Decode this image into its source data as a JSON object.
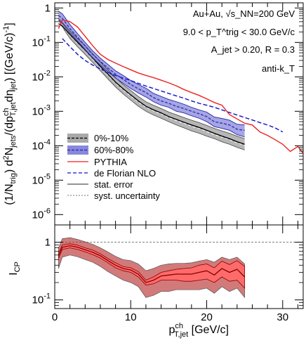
{
  "chart_data": [
    {
      "type": "line",
      "panel": "top",
      "yscale": "log",
      "xlim": [
        0,
        32.7
      ],
      "ylim": [
        5e-07,
        1.5
      ],
      "xticks": [
        "0",
        "10",
        "20",
        "30"
      ],
      "yticks": [
        "10^-6",
        "10^-5",
        "10^-4",
        "10^-3",
        "10^-2",
        "10^-1",
        "1"
      ],
      "ylabel": "(1/N_trig) d²N_jets/(dp^ch_T,jet dη_jet) [(GeV/c)^-1]",
      "annotations": [
        "Au+Au, √s_NN=200 GeV",
        "9.0 < p_T^trig < 30.0 GeV/c",
        "A_jet > 0.20, R = 0.3",
        "anti-k_T"
      ],
      "legend": {
        "position": "lower-left",
        "entries": [
          "0%-10%",
          "60%-80%",
          "PYTHIA",
          "de Florian NLO",
          "stat. error",
          "syst. uncertainty"
        ]
      },
      "series": [
        {
          "name": "0%-10%",
          "color": "#000000",
          "band_color": "#a9a9a9",
          "x": [
            0.5,
            1,
            2,
            3,
            4,
            5,
            6,
            7,
            8,
            9,
            10,
            11,
            12,
            13,
            14,
            15,
            16,
            17,
            18,
            19,
            20,
            21,
            22,
            23,
            24,
            25
          ],
          "y": [
            0.35,
            0.3,
            0.17,
            0.1,
            0.06,
            0.035,
            0.02,
            0.012,
            0.007,
            0.0045,
            0.003,
            0.002,
            0.0014,
            0.0011,
            0.0009,
            0.0007,
            0.00058,
            0.00048,
            0.0004,
            0.00034,
            0.00028,
            0.00023,
            0.00019,
            0.00016,
            0.00013,
            0.00011
          ],
          "band_low": [
            0.45,
            0.28,
            0.13,
            0.075,
            0.045,
            0.026,
            0.015,
            0.0087,
            0.0051,
            0.0032,
            0.0021,
            0.0014,
            0.001,
            0.00078,
            0.00063,
            0.0005,
            0.0004,
            0.00033,
            0.00027,
            0.00023,
            0.00019,
            0.00016,
            0.00013,
            0.00011,
            9e-05,
            7.5e-05
          ],
          "band_high": [
            0.5,
            0.38,
            0.22,
            0.13,
            0.08,
            0.047,
            0.027,
            0.016,
            0.0095,
            0.006,
            0.004,
            0.0027,
            0.0019,
            0.0015,
            0.0012,
            0.00095,
            0.00079,
            0.00066,
            0.00055,
            0.00047,
            0.00039,
            0.00032,
            0.00027,
            0.00023,
            0.00019,
            0.00016
          ],
          "y_dashed": [
            0.35,
            0.29,
            0.16,
            0.095,
            0.057,
            0.033,
            0.019,
            0.0113,
            0.0066,
            0.0042,
            0.0028,
            0.00187,
            0.00131,
            0.00103,
            0.00084,
            0.00066,
            0.00054,
            0.00045,
            0.00037,
            0.00032,
            0.00026,
            0.00021,
            0.000178,
            0.00015,
            0.000122,
            0.000103
          ]
        },
        {
          "name": "60%-80%",
          "color": "#3333aa",
          "band_color": "#8888dd",
          "x": [
            0.5,
            1,
            2,
            3,
            4,
            5,
            6,
            7,
            8,
            9,
            10,
            11,
            12,
            13,
            14,
            15,
            16,
            17,
            18,
            19,
            20,
            21,
            22,
            23,
            24,
            25
          ],
          "y": [
            0.6,
            0.5,
            0.25,
            0.14,
            0.08,
            0.045,
            0.028,
            0.018,
            0.012,
            0.0085,
            0.006,
            0.0045,
            0.0035,
            0.0025,
            0.002,
            0.0017,
            0.0014,
            0.0012,
            0.001,
            0.00085,
            0.0007,
            0.0005,
            0.00045,
            0.0004,
            0.0003,
            0.00028
          ],
          "band_low": [
            0.45,
            0.36,
            0.19,
            0.11,
            0.062,
            0.036,
            0.022,
            0.014,
            0.0093,
            0.0065,
            0.0046,
            0.0034,
            0.0026,
            0.0019,
            0.0015,
            0.0013,
            0.001,
            0.0009,
            0.00074,
            0.00063,
            0.0005,
            0.00036,
            0.00032,
            0.00028,
            0.00021,
            0.00018
          ],
          "band_high": [
            0.8,
            0.68,
            0.33,
            0.18,
            0.1,
            0.057,
            0.035,
            0.023,
            0.015,
            0.011,
            0.0078,
            0.006,
            0.0047,
            0.0033,
            0.0027,
            0.0022,
            0.0019,
            0.0016,
            0.0013,
            0.0011,
            0.00095,
            0.00068,
            0.00062,
            0.00055,
            0.00042,
            0.0004
          ]
        },
        {
          "name": "PYTHIA",
          "color": "#ee2222",
          "x": [
            0.5,
            1,
            2,
            3,
            4,
            5,
            6,
            7,
            8,
            9,
            10,
            11,
            12,
            13,
            14,
            15,
            16,
            17,
            18,
            19,
            20,
            21,
            22,
            23,
            24,
            25,
            26,
            27,
            28,
            29,
            30,
            31,
            32,
            32.7
          ],
          "y": [
            0.25,
            0.45,
            0.4,
            0.28,
            0.15,
            0.08,
            0.045,
            0.032,
            0.025,
            0.02,
            0.016,
            0.013,
            0.011,
            0.0095,
            0.008,
            0.0067,
            0.0055,
            0.0043,
            0.0035,
            0.0029,
            0.0023,
            0.0018,
            0.0015,
            0.0008,
            0.0006,
            0.00045,
            0.0004,
            0.00025,
            0.0002,
            0.00015,
            0.00011,
            6.8e-05,
            9.5e-05,
            6e-05
          ]
        },
        {
          "name": "de Florian NLO",
          "color": "#1111cc",
          "x": [
            1,
            2,
            3,
            4,
            5,
            6,
            7,
            8,
            9,
            10,
            11,
            12,
            13,
            14,
            15,
            16,
            17,
            18,
            19,
            20,
            21,
            22,
            23,
            24,
            25,
            26,
            27,
            28,
            29,
            30
          ],
          "y": [
            0.13,
            0.075,
            0.045,
            0.03,
            0.022,
            0.017,
            0.0135,
            0.011,
            0.0092,
            0.0078,
            0.0065,
            0.0054,
            0.0046,
            0.0039,
            0.0033,
            0.0028,
            0.0024,
            0.002,
            0.0017,
            0.0015,
            0.0013,
            0.0011,
            0.00092,
            0.00078,
            0.00066,
            0.00056,
            0.00047,
            0.0004,
            0.00033,
            0.00025
          ]
        }
      ]
    },
    {
      "type": "line",
      "panel": "bottom",
      "yscale": "log",
      "xlim": [
        0,
        32.7
      ],
      "ylim": [
        0.07,
        2.0
      ],
      "xticks": [
        "0",
        "10",
        "20",
        "30"
      ],
      "yticks": [
        "10^-1",
        "1"
      ],
      "xlabel": "p^ch_T,jet [GeV/c]",
      "ylabel": "I_CP",
      "reference_line": 1,
      "series": [
        {
          "name": "I_CP",
          "color": "#880000",
          "syst_band_color": "#d27a7a",
          "stat_band_color": "#ff6b6b",
          "x": [
            0.5,
            1,
            2,
            3,
            4,
            5,
            6,
            7,
            8,
            9,
            10,
            11,
            12,
            13,
            14,
            15,
            16,
            17,
            18,
            19,
            20,
            21,
            22,
            23,
            24,
            25
          ],
          "y": [
            0.58,
            0.82,
            0.87,
            0.82,
            0.74,
            0.67,
            0.58,
            0.48,
            0.4,
            0.35,
            0.33,
            0.28,
            0.2,
            0.22,
            0.26,
            0.27,
            0.28,
            0.28,
            0.28,
            0.3,
            0.32,
            0.27,
            0.35,
            0.3,
            0.34,
            0.25
          ],
          "syst_low": [
            0.35,
            0.55,
            0.6,
            0.56,
            0.5,
            0.45,
            0.38,
            0.31,
            0.26,
            0.22,
            0.2,
            0.17,
            0.11,
            0.12,
            0.14,
            0.14,
            0.15,
            0.15,
            0.15,
            0.15,
            0.16,
            0.13,
            0.17,
            0.14,
            0.16,
            0.11
          ],
          "syst_high": [
            0.8,
            1.15,
            1.2,
            1.12,
            1.02,
            0.92,
            0.8,
            0.68,
            0.57,
            0.5,
            0.48,
            0.42,
            0.32,
            0.35,
            0.4,
            0.42,
            0.43,
            0.43,
            0.44,
            0.47,
            0.5,
            0.45,
            0.55,
            0.5,
            0.55,
            0.42
          ],
          "stat_low": [
            0.52,
            0.75,
            0.8,
            0.75,
            0.68,
            0.61,
            0.53,
            0.44,
            0.36,
            0.32,
            0.3,
            0.25,
            0.18,
            0.19,
            0.22,
            0.22,
            0.22,
            0.21,
            0.21,
            0.22,
            0.23,
            0.2,
            0.25,
            0.21,
            0.22,
            0.16
          ],
          "stat_high": [
            0.64,
            0.9,
            0.94,
            0.89,
            0.8,
            0.73,
            0.63,
            0.52,
            0.44,
            0.38,
            0.36,
            0.31,
            0.22,
            0.25,
            0.3,
            0.32,
            0.34,
            0.35,
            0.36,
            0.4,
            0.42,
            0.36,
            0.47,
            0.41,
            0.48,
            0.38
          ]
        }
      ]
    }
  ]
}
